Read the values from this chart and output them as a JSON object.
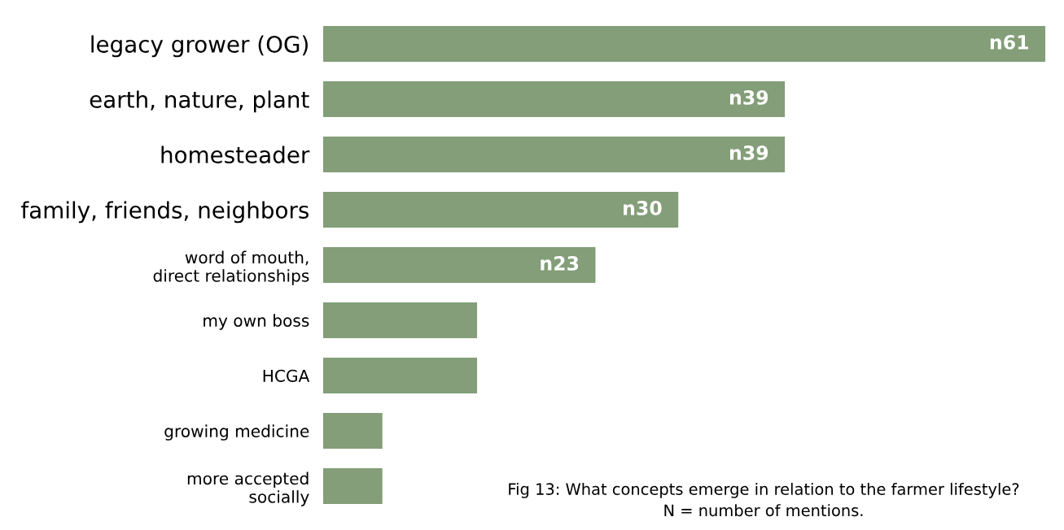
{
  "chart_data": {
    "type": "bar",
    "orientation": "horizontal",
    "categories": [
      "legacy grower (OG)",
      "earth, nature, plant",
      "homesteader",
      "family, friends, neighbors",
      "word of mouth,\ndirect relationships",
      "my own boss",
      "HCGA",
      "growing medicine",
      "more accepted\nsocially"
    ],
    "values": [
      61,
      39,
      39,
      30,
      23,
      13,
      13,
      5,
      5
    ],
    "value_labels": [
      "n61",
      "n39",
      "n39",
      "n30",
      "n23",
      null,
      null,
      null,
      null
    ],
    "color": "#839e78",
    "grid": false,
    "legend": false,
    "annotations": [
      "Fig 13: What concepts emerge in relation to the farmer lifestyle?\nN = number of mentions."
    ]
  }
}
